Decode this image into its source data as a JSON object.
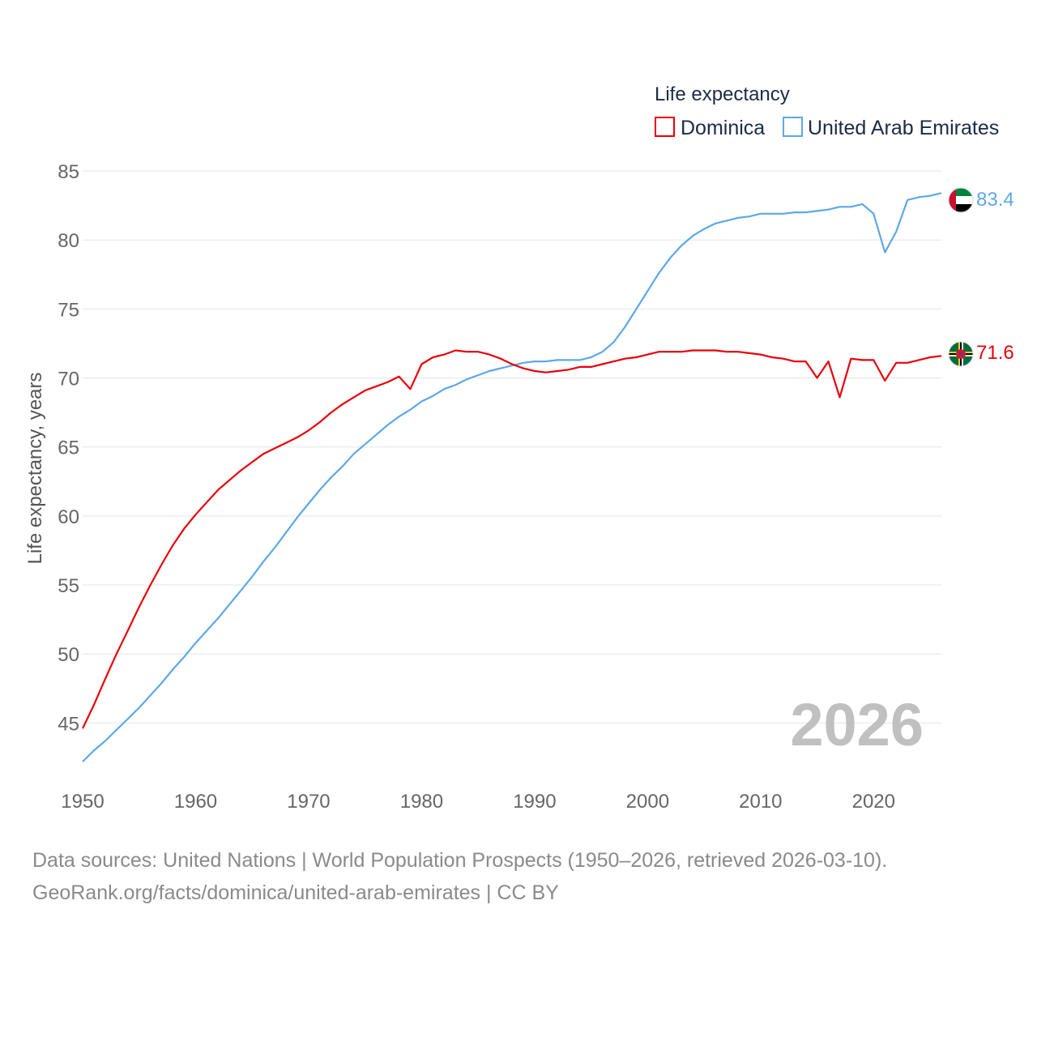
{
  "chart_data": {
    "type": "line",
    "legend_title": "Life expectancy",
    "ylabel": "Life expectancy, years",
    "xlabel": "",
    "xlim": [
      1950,
      2026
    ],
    "ylim": [
      41.5,
      86
    ],
    "x_ticks": [
      1950,
      1960,
      1970,
      1980,
      1990,
      2000,
      2010,
      2020
    ],
    "y_ticks": [
      45,
      50,
      55,
      60,
      65,
      70,
      75,
      80,
      85
    ],
    "year_label": "2026",
    "legend_position": "top-right",
    "series": [
      {
        "name": "Dominica",
        "color": "#e8000b",
        "end_label": "71.6",
        "flag": "dominica-flag",
        "x": [
          1950,
          1951,
          1952,
          1953,
          1954,
          1955,
          1956,
          1957,
          1958,
          1959,
          1960,
          1961,
          1962,
          1963,
          1964,
          1965,
          1966,
          1967,
          1968,
          1969,
          1970,
          1971,
          1972,
          1973,
          1974,
          1975,
          1976,
          1977,
          1978,
          1979,
          1980,
          1981,
          1982,
          1983,
          1984,
          1985,
          1986,
          1987,
          1988,
          1989,
          1990,
          1991,
          1992,
          1993,
          1994,
          1995,
          1996,
          1997,
          1998,
          1999,
          2000,
          2001,
          2002,
          2003,
          2004,
          2005,
          2006,
          2007,
          2008,
          2009,
          2010,
          2011,
          2012,
          2013,
          2014,
          2015,
          2016,
          2017,
          2018,
          2019,
          2020,
          2021,
          2022,
          2023,
          2024,
          2025,
          2026
        ],
        "values": [
          44.6,
          46.3,
          48.2,
          50.0,
          51.7,
          53.4,
          55.0,
          56.5,
          57.9,
          59.1,
          60.1,
          61.0,
          61.9,
          62.6,
          63.3,
          63.9,
          64.5,
          64.9,
          65.3,
          65.7,
          66.2,
          66.8,
          67.5,
          68.1,
          68.6,
          69.1,
          69.4,
          69.7,
          70.1,
          69.2,
          71.0,
          71.5,
          71.7,
          72.0,
          71.9,
          71.9,
          71.7,
          71.4,
          71.0,
          70.7,
          70.5,
          70.4,
          70.5,
          70.6,
          70.8,
          70.8,
          71.0,
          71.2,
          71.4,
          71.5,
          71.7,
          71.9,
          71.9,
          71.9,
          72.0,
          72.0,
          72.0,
          71.9,
          71.9,
          71.8,
          71.7,
          71.5,
          71.4,
          71.2,
          71.2,
          70.0,
          71.2,
          68.6,
          71.4,
          71.3,
          71.3,
          69.8,
          71.1,
          71.1,
          71.3,
          71.5,
          71.6
        ]
      },
      {
        "name": "United Arab Emirates",
        "color": "#5ea8e6",
        "end_label": "83.4",
        "flag": "uae-flag",
        "x": [
          1950,
          1951,
          1952,
          1953,
          1954,
          1955,
          1956,
          1957,
          1958,
          1959,
          1960,
          1961,
          1962,
          1963,
          1964,
          1965,
          1966,
          1967,
          1968,
          1969,
          1970,
          1971,
          1972,
          1973,
          1974,
          1975,
          1976,
          1977,
          1978,
          1979,
          1980,
          1981,
          1982,
          1983,
          1984,
          1985,
          1986,
          1987,
          1988,
          1989,
          1990,
          1991,
          1992,
          1993,
          1994,
          1995,
          1996,
          1997,
          1998,
          1999,
          2000,
          2001,
          2002,
          2003,
          2004,
          2005,
          2006,
          2007,
          2008,
          2009,
          2010,
          2011,
          2012,
          2013,
          2014,
          2015,
          2016,
          2017,
          2018,
          2019,
          2020,
          2021,
          2022,
          2023,
          2024,
          2025,
          2026
        ],
        "values": [
          42.2,
          43.0,
          43.7,
          44.5,
          45.3,
          46.1,
          47.0,
          47.9,
          48.9,
          49.8,
          50.8,
          51.7,
          52.6,
          53.6,
          54.6,
          55.6,
          56.7,
          57.7,
          58.8,
          59.9,
          60.9,
          61.9,
          62.8,
          63.6,
          64.5,
          65.2,
          65.9,
          66.6,
          67.2,
          67.7,
          68.3,
          68.7,
          69.2,
          69.5,
          69.9,
          70.2,
          70.5,
          70.7,
          70.9,
          71.1,
          71.2,
          71.2,
          71.3,
          71.3,
          71.3,
          71.5,
          71.9,
          72.6,
          73.7,
          75.0,
          76.3,
          77.6,
          78.7,
          79.6,
          80.3,
          80.8,
          81.2,
          81.4,
          81.6,
          81.7,
          81.9,
          81.9,
          81.9,
          82.0,
          82.0,
          82.1,
          82.2,
          82.4,
          82.4,
          82.6,
          81.9,
          79.1,
          80.6,
          82.9,
          83.1,
          83.2,
          83.4
        ]
      }
    ]
  },
  "footer": {
    "line1": "Data sources: United Nations | World Population Prospects (1950–2026, retrieved 2026-03-10).",
    "line2": "GeoRank.org/facts/dominica/united-arab-emirates | CC BY"
  }
}
